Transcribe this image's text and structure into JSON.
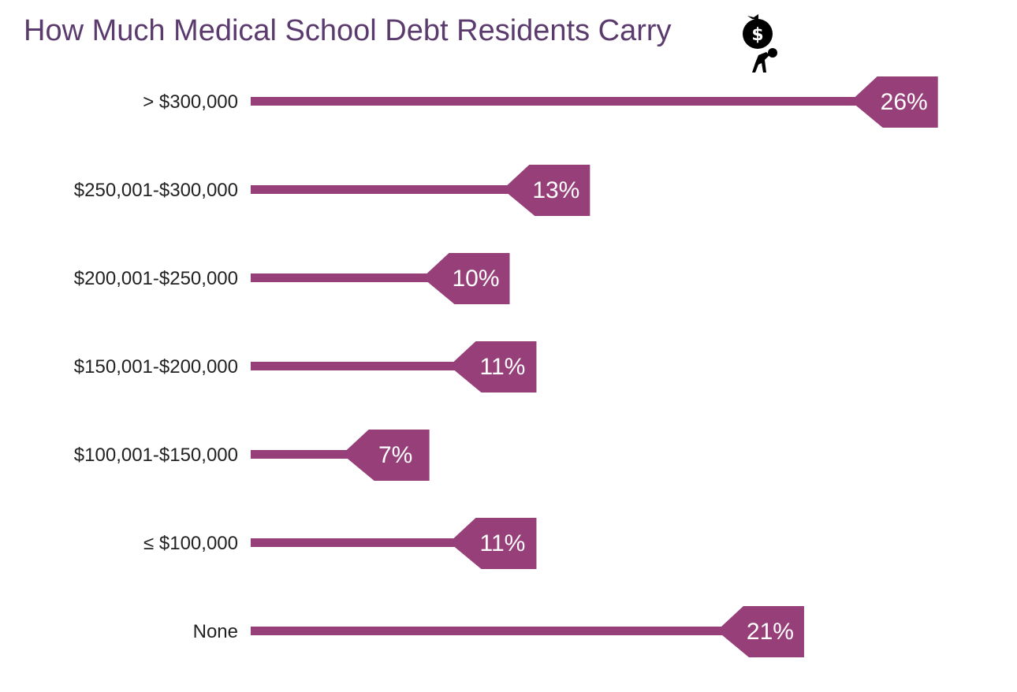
{
  "chart_data": {
    "type": "bar",
    "orientation": "horizontal",
    "title": "How Much Medical School Debt Residents Carry",
    "categories": [
      "> $300,000",
      "$250,001-$300,000",
      "$200,001-$250,000",
      "$150,001-$200,000",
      "$100,001-$150,000",
      "≤ $100,000",
      "None"
    ],
    "values": [
      26,
      13,
      10,
      11,
      7,
      11,
      21
    ],
    "data_labels": [
      "26%",
      "13%",
      "10%",
      "11%",
      "7%",
      "11%",
      "21%"
    ],
    "unit": "%",
    "grid": false,
    "legend": "none",
    "colors": {
      "bar": "#963f79",
      "title": "#5b3b6e",
      "label_text": "#ffffff",
      "category_text": "#222222"
    }
  },
  "icon": "person-carrying-money-bag-icon"
}
